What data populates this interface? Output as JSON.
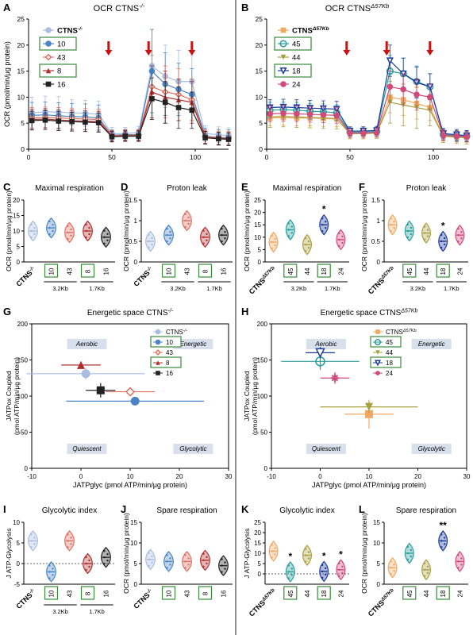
{
  "colors": {
    "wt": "#a8bde0",
    "c10": "#4a84c4",
    "c43": "#e07060",
    "c8": "#b03030",
    "c16": "#222222",
    "ko": "#f0a860",
    "c45": "#2a9d9a",
    "c44": "#a8a040",
    "c18": "#1a3a9a",
    "c24": "#d04a7a",
    "arrow": "#cc1111",
    "box": "#3a8a3a"
  },
  "panels": {
    "A": {
      "letter": "A",
      "title": "OCR CTNS",
      "sup": "-/-",
      "ylabel": "OCR (pmol/min/μg protein)",
      "legend": [
        {
          "name": "CTNS",
          "sup": "-/-",
          "key": "wt",
          "marker": "circle-dot",
          "boxed": false
        },
        {
          "name": "10",
          "key": "c10",
          "marker": "circle",
          "boxed": true
        },
        {
          "name": "43",
          "key": "c43",
          "marker": "diamond",
          "boxed": false
        },
        {
          "name": "8",
          "key": "c8",
          "marker": "triangle",
          "boxed": true
        },
        {
          "name": "16",
          "key": "c16",
          "marker": "square",
          "boxed": false
        }
      ]
    },
    "B": {
      "letter": "B",
      "title": "OCR CTNS",
      "sup": "Δ57Kb",
      "legend": [
        {
          "name": "CTNS",
          "sup": "Δ57Kb",
          "key": "ko",
          "marker": "square",
          "boxed": false
        },
        {
          "name": "45",
          "key": "c45",
          "marker": "hexagon",
          "boxed": true
        },
        {
          "name": "44",
          "key": "c44",
          "marker": "tri-down",
          "boxed": false
        },
        {
          "name": "18",
          "key": "c18",
          "marker": "tri-down-open",
          "boxed": true
        },
        {
          "name": "24",
          "key": "c24",
          "marker": "circle",
          "boxed": false
        }
      ]
    },
    "C": {
      "letter": "C",
      "title": "Maximal respiration",
      "ylabel": "OCR (pmol/min/μg protein)"
    },
    "D": {
      "letter": "D",
      "title": "Proton leak",
      "ylabel": "OCR (pmol/min/μg protein)"
    },
    "E": {
      "letter": "E",
      "title": "Maximal respiration",
      "ylabel": "OCR (pmol/min/μg protein)"
    },
    "F": {
      "letter": "F",
      "title": "Proton leak",
      "ylabel": "OCR (pmol/min/μg protein)"
    },
    "G": {
      "letter": "G",
      "title": "Energetic space CTNS",
      "sup": "-/-",
      "xlabel": "JATPglyc (pmol ATP/min/μg protein)",
      "ylabel1": "JATPox Coupled",
      "ylabel2": "(pmol ATP/min/μg protein)",
      "quadrants": [
        "Aerobic",
        "Energetic",
        "Quiescent",
        "Glycolytic"
      ],
      "legend": [
        {
          "name": "CTNS",
          "sup": "-/-",
          "key": "wt",
          "boxed": false
        },
        {
          "name": "10",
          "key": "c10",
          "boxed": true
        },
        {
          "name": "43",
          "key": "c43",
          "boxed": false
        },
        {
          "name": "8",
          "key": "c8",
          "boxed": true
        },
        {
          "name": "16",
          "key": "c16",
          "boxed": false
        }
      ]
    },
    "H": {
      "letter": "H",
      "title": "Energetic space CTNS",
      "sup": "Δ57Kb",
      "xlabel": "JATPglyc (pmol ATP/min/μg protein)",
      "ylabel1": "JATPox Coupled",
      "ylabel2": "(pmol ATP/min/μg protein)",
      "quadrants": [
        "Aerobic",
        "Energetic",
        "Quiescent",
        "Glycolytic"
      ],
      "legend": [
        {
          "name": "CTNS",
          "sup": "Δ57Kb",
          "key": "ko",
          "boxed": false
        },
        {
          "name": "45",
          "key": "c45",
          "boxed": true
        },
        {
          "name": "44",
          "key": "c44",
          "boxed": false
        },
        {
          "name": "18",
          "key": "c18",
          "boxed": true
        },
        {
          "name": "24",
          "key": "c24",
          "boxed": false
        }
      ]
    },
    "I": {
      "letter": "I",
      "title": "Glycolytic index",
      "ylabel": "J ATP-Glycolysis"
    },
    "J": {
      "letter": "J",
      "title": "Spare respiration",
      "ylabel": "OCR (pmol/min/μg protein)"
    },
    "K": {
      "letter": "K",
      "title": "Glycolytic index",
      "ylabel": "J ATP-Glycolysis"
    },
    "L": {
      "letter": "L",
      "title": "Spare respiration",
      "ylabel": "OCR (pmol/min/μg protein)"
    }
  },
  "groups_left": {
    "ctrl": "CTNS",
    "ctrl_sup": "-/-",
    "clones": [
      "10",
      "43",
      "8",
      "16"
    ],
    "boxed": [
      "10",
      "8"
    ],
    "bracket1": "3.2Kb",
    "bracket2": "1.7Kb"
  },
  "groups_right": {
    "ctrl": "CTNS",
    "ctrl_sup": "Δ57Kb",
    "clones": [
      "45",
      "44",
      "18",
      "24"
    ],
    "boxed": [
      "45",
      "18"
    ],
    "bracket1": "3.2Kb",
    "bracket2": "1.7Kb"
  },
  "chart_data": [
    {
      "panel": "A",
      "type": "line",
      "ylim": [
        0,
        25
      ],
      "xlim": [
        0,
        120
      ],
      "xticks": [
        0,
        50,
        100
      ],
      "yticks": [
        0,
        5,
        10,
        15,
        20,
        25
      ],
      "x": [
        2,
        10,
        18,
        26,
        34,
        42,
        50,
        58,
        66,
        74,
        82,
        90,
        98,
        106,
        114,
        120
      ],
      "series": [
        {
          "name": "CTNS-/-",
          "key": "wt",
          "values": [
            7,
            7.2,
            7.1,
            7,
            6.9,
            6.7,
            3,
            3,
            3.2,
            16,
            14,
            13,
            13,
            3,
            2.8,
            2.6
          ],
          "err": [
            3,
            3,
            3,
            2.5,
            2.5,
            2.5,
            1.2,
            1.2,
            1.2,
            7,
            6,
            6,
            5,
            1.5,
            1.5,
            1.5
          ]
        },
        {
          "name": "10",
          "key": "c10",
          "values": [
            6.5,
            6.6,
            6.4,
            6.3,
            6.2,
            6,
            2.7,
            2.8,
            2.8,
            15,
            12.5,
            11.5,
            10.5,
            2.5,
            2.3,
            2.2
          ],
          "err": [
            2.5,
            2.5,
            2.5,
            2.5,
            2.5,
            2.5,
            1,
            1,
            1,
            8,
            6,
            5,
            5,
            1.5,
            1.5,
            1.5
          ]
        },
        {
          "name": "43",
          "key": "c43",
          "values": [
            6,
            6.1,
            6,
            5.9,
            5.8,
            5.7,
            2.6,
            2.7,
            2.7,
            12,
            11,
            10.5,
            9.5,
            2.4,
            2.2,
            2.1
          ],
          "err": [
            2,
            2,
            2,
            2,
            2,
            2,
            1,
            1,
            1,
            6,
            5,
            5,
            4,
            1.3,
            1.3,
            1.3
          ]
        },
        {
          "name": "8",
          "key": "c8",
          "values": [
            5.7,
            5.8,
            5.6,
            5.5,
            5.4,
            5.3,
            2.5,
            2.6,
            2.6,
            11,
            10,
            9.5,
            9,
            2.3,
            2.1,
            2
          ],
          "err": [
            2,
            2,
            2,
            2,
            2,
            2,
            1,
            1,
            1,
            5,
            5,
            4,
            4,
            1.2,
            1.2,
            1.2
          ]
        },
        {
          "name": "16",
          "key": "c16",
          "values": [
            5.5,
            5.6,
            5.4,
            5.3,
            5.2,
            5.1,
            2.4,
            2.5,
            2.5,
            9.7,
            9,
            8,
            7.5,
            2.2,
            2,
            1.9
          ],
          "err": [
            1.8,
            1.8,
            1.8,
            1.8,
            1.8,
            1.8,
            1,
            1,
            1,
            4,
            4,
            4,
            3.5,
            1.2,
            1.2,
            1.2
          ]
        }
      ],
      "injections": [
        48,
        72,
        98
      ]
    },
    {
      "panel": "B",
      "type": "line",
      "ylim": [
        0,
        25
      ],
      "xlim": [
        0,
        120
      ],
      "xticks": [
        0,
        50,
        100
      ],
      "yticks": [
        0,
        5,
        10,
        15,
        20,
        25
      ],
      "x": [
        2,
        10,
        18,
        26,
        34,
        42,
        50,
        58,
        66,
        74,
        82,
        90,
        98,
        106,
        114,
        120
      ],
      "series": [
        {
          "name": "CTNSΔ57Kb",
          "key": "ko",
          "values": [
            6,
            6.1,
            6,
            6,
            5.9,
            5.8,
            3,
            3,
            3.1,
            10,
            9.5,
            8.8,
            8,
            2.6,
            2.4,
            2.3
          ],
          "err": [
            1.5,
            1.5,
            1.5,
            1.5,
            1.5,
            1.5,
            0.8,
            0.8,
            0.8,
            3,
            3,
            3,
            2.5,
            1,
            1,
            1
          ]
        },
        {
          "name": "45",
          "key": "c45",
          "values": [
            7.5,
            7.6,
            7.5,
            7.3,
            7.2,
            7,
            3.3,
            3.3,
            3.4,
            15,
            14.5,
            13,
            12,
            2.8,
            2.6,
            2.5
          ],
          "err": [
            1.5,
            1.5,
            1.5,
            1.5,
            1.5,
            1.5,
            0.8,
            0.8,
            0.8,
            3,
            3,
            3,
            2.5,
            1,
            1,
            1
          ]
        },
        {
          "name": "44",
          "key": "c44",
          "values": [
            6.2,
            6.3,
            6.2,
            6.1,
            6,
            5.9,
            3,
            3,
            3.1,
            9,
            8.5,
            8,
            7.5,
            2.5,
            2.3,
            2.2
          ],
          "err": [
            2,
            2,
            2,
            2,
            2,
            2,
            1,
            1,
            1,
            4,
            4,
            4,
            3,
            1.2,
            1.2,
            1.2
          ]
        },
        {
          "name": "18",
          "key": "c18",
          "values": [
            8,
            8.1,
            8,
            7.9,
            7.8,
            7.7,
            3.5,
            3.5,
            3.6,
            17,
            14.5,
            12.8,
            12,
            3,
            2.8,
            2.6
          ],
          "err": [
            1.5,
            1.5,
            1.5,
            1.5,
            1.5,
            1.5,
            0.8,
            0.8,
            0.8,
            3,
            3,
            3,
            2.5,
            1,
            1,
            1
          ]
        },
        {
          "name": "24",
          "key": "c24",
          "values": [
            6.8,
            6.9,
            6.8,
            6.7,
            6.6,
            6.5,
            3.1,
            3.1,
            3.2,
            12,
            11.5,
            10.5,
            10,
            2.7,
            2.5,
            2.4
          ],
          "err": [
            1.5,
            1.5,
            1.5,
            1.5,
            1.5,
            1.5,
            0.8,
            0.8,
            0.8,
            3,
            3,
            3,
            2.5,
            1,
            1,
            1
          ]
        }
      ],
      "injections": [
        48,
        72,
        98
      ]
    },
    {
      "panel": "C",
      "type": "violin",
      "ylim": [
        0,
        20
      ],
      "yticks": [
        0,
        5,
        10,
        15,
        20
      ],
      "groups": [
        "wt",
        "c10",
        "c43",
        "c8",
        "c16"
      ],
      "values": [
        10,
        11,
        9.5,
        10,
        8
      ]
    },
    {
      "panel": "D",
      "type": "violin",
      "ylim": [
        0,
        1.5
      ],
      "yticks": [
        0.0,
        0.5,
        1.0,
        1.5
      ],
      "groups": [
        "wt",
        "c10",
        "c43",
        "c8",
        "c16"
      ],
      "values": [
        0.5,
        0.65,
        1.0,
        0.6,
        0.65
      ]
    },
    {
      "panel": "E",
      "type": "violin",
      "ylim": [
        0,
        25
      ],
      "yticks": [
        0,
        5,
        10,
        15,
        20,
        25
      ],
      "groups": [
        "ko",
        "c45",
        "c44",
        "c18",
        "c24"
      ],
      "values": [
        8,
        13,
        7,
        15,
        9
      ],
      "stars": [
        "",
        "",
        "",
        "*",
        ""
      ]
    },
    {
      "panel": "F",
      "type": "violin",
      "ylim": [
        0,
        1.5
      ],
      "yticks": [
        0.0,
        0.5,
        1.0,
        1.5
      ],
      "groups": [
        "ko",
        "c45",
        "c44",
        "c18",
        "c24"
      ],
      "values": [
        0.9,
        0.75,
        0.7,
        0.5,
        0.65
      ],
      "stars": [
        "",
        "",
        "",
        "*",
        ""
      ]
    },
    {
      "panel": "G",
      "type": "scatter",
      "xlim": [
        -10,
        30
      ],
      "ylim": [
        0,
        200
      ],
      "xticks": [
        -10,
        0,
        10,
        20,
        30
      ],
      "yticks": [
        0,
        50,
        100,
        150,
        200
      ],
      "points": [
        {
          "key": "wt",
          "x": 1,
          "y": 131,
          "xerr": 12,
          "yerr": 8
        },
        {
          "key": "c10",
          "x": 11,
          "y": 93,
          "xerr": 14,
          "yerr": 4
        },
        {
          "key": "c43",
          "x": 10,
          "y": 106,
          "xerr": 5,
          "yerr": 3
        },
        {
          "key": "c8",
          "x": 0,
          "y": 143,
          "xerr": 4,
          "yerr": 5
        },
        {
          "key": "c16",
          "x": 4,
          "y": 108,
          "xerr": 3,
          "yerr": 10
        }
      ]
    },
    {
      "panel": "H",
      "type": "scatter",
      "xlim": [
        -10,
        30
      ],
      "ylim": [
        0,
        200
      ],
      "xticks": [
        -10,
        0,
        10,
        20,
        30
      ],
      "yticks": [
        0,
        50,
        100,
        150,
        200
      ],
      "points": [
        {
          "key": "ko",
          "x": 10,
          "y": 75,
          "xerr": 5,
          "yerr": 20
        },
        {
          "key": "c45",
          "x": 0,
          "y": 148,
          "xerr": 8,
          "yerr": 12
        },
        {
          "key": "c44",
          "x": 10,
          "y": 85,
          "xerr": 10,
          "yerr": 8
        },
        {
          "key": "c18",
          "x": 0,
          "y": 160,
          "xerr": 3,
          "yerr": 8
        },
        {
          "key": "c24",
          "x": 3,
          "y": 125,
          "xerr": 3,
          "yerr": 8
        }
      ]
    },
    {
      "panel": "I",
      "type": "violin",
      "ylim": [
        -5,
        10
      ],
      "yticks": [
        -5,
        0,
        5,
        10
      ],
      "groups": [
        "wt",
        "c10",
        "c43",
        "c8",
        "c16"
      ],
      "values": [
        5.5,
        -2,
        5.5,
        0,
        1.5
      ]
    },
    {
      "panel": "J",
      "type": "violin",
      "ylim": [
        0,
        15
      ],
      "yticks": [
        0,
        5,
        10,
        15
      ],
      "groups": [
        "wt",
        "c10",
        "c43",
        "c8",
        "c16"
      ],
      "values": [
        6,
        5.5,
        5.5,
        5.8,
        4.5
      ]
    },
    {
      "panel": "K",
      "type": "violin",
      "ylim": [
        -5,
        25
      ],
      "yticks": [
        0,
        5,
        10,
        15,
        20,
        25
      ],
      "groups": [
        "ko",
        "c45",
        "c44",
        "c18",
        "c24"
      ],
      "values": [
        11,
        1,
        9,
        1.2,
        2
      ],
      "stars": [
        "",
        "*",
        "",
        "*",
        "*"
      ]
    },
    {
      "panel": "L",
      "type": "violin",
      "ylim": [
        0,
        15
      ],
      "yticks": [
        0,
        5,
        10,
        15
      ],
      "groups": [
        "ko",
        "c45",
        "c44",
        "c18",
        "c24"
      ],
      "values": [
        4,
        7.5,
        3.5,
        10.5,
        5.5
      ],
      "stars": [
        "",
        "",
        "",
        "**",
        ""
      ]
    }
  ]
}
